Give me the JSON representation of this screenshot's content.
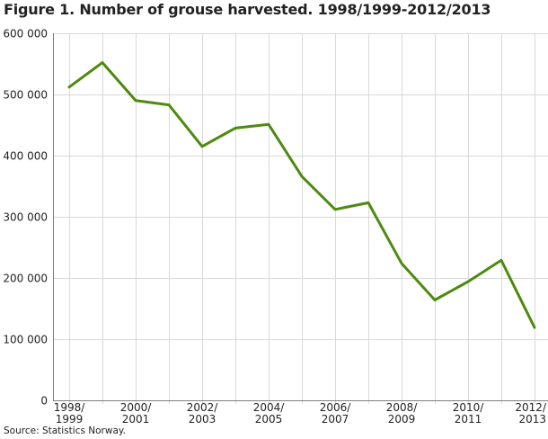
{
  "title": "Figure 1. Number of grouse harvested. 1998/1999-2012/2013",
  "source": "Source: Statistics Norway.",
  "colors": {
    "series": "#4e8a0f",
    "grid": "#d9d9d9",
    "axis": "#7f7f7f"
  },
  "chart_data": {
    "type": "line",
    "title": "Figure 1. Number of grouse harvested. 1998/1999-2012/2013",
    "xlabel": "",
    "ylabel": "",
    "x": [
      "1998/1999",
      "1999/2000",
      "2000/2001",
      "2001/2002",
      "2002/2003",
      "2003/2004",
      "2004/2005",
      "2005/2006",
      "2006/2007",
      "2007/2008",
      "2008/2009",
      "2009/2010",
      "2010/2011",
      "2011/2012",
      "2012/2013"
    ],
    "x_tick_labels": [
      {
        "top": "1998/",
        "bottom": "1999"
      },
      {
        "top": "2000/",
        "bottom": "2001"
      },
      {
        "top": "2002/",
        "bottom": "2003"
      },
      {
        "top": "2004/",
        "bottom": "2005"
      },
      {
        "top": "2006/",
        "bottom": "2007"
      },
      {
        "top": "2008/",
        "bottom": "2009"
      },
      {
        "top": "2010/",
        "bottom": "2011"
      },
      {
        "top": "2012/",
        "bottom": "2013"
      }
    ],
    "y_ticks": [
      0,
      100000,
      200000,
      300000,
      400000,
      500000,
      600000
    ],
    "y_tick_labels": [
      "0",
      "100 000",
      "200 000",
      "300 000",
      "400 000",
      "500 000",
      "600 000"
    ],
    "ylim": [
      0,
      600000
    ],
    "grid": true,
    "legend": "none",
    "series": [
      {
        "values": [
          512000,
          552000,
          490000,
          483000,
          415000,
          445000,
          451000,
          366000,
          312000,
          323000,
          224000,
          164000,
          194000,
          229000,
          119000
        ]
      }
    ]
  }
}
